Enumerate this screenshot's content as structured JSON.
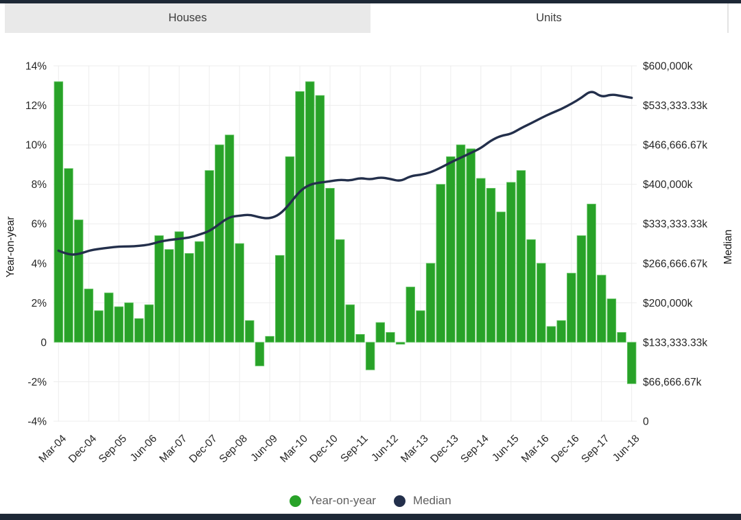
{
  "tabs": {
    "houses": "Houses",
    "units": "Units",
    "active": "Units"
  },
  "colors": {
    "accent_dark": "#1d2836",
    "bar_green": "#28a228",
    "bar_green_border": "#6cc96c",
    "line_navy": "#232f4b",
    "tab_inactive_bg": "#e9e9e9",
    "grid": "#ededed",
    "tick_text": "#262626",
    "legend_text": "#5f5f5f"
  },
  "chart_data": {
    "type": "bar",
    "title": "",
    "categories": [
      "Mar-04",
      "Jun-04",
      "Sep-04",
      "Dec-04",
      "Mar-05",
      "Jun-05",
      "Sep-05",
      "Dec-05",
      "Mar-06",
      "Jun-06",
      "Sep-06",
      "Dec-06",
      "Mar-07",
      "Jun-07",
      "Sep-07",
      "Dec-07",
      "Mar-08",
      "Jun-08",
      "Sep-08",
      "Dec-08",
      "Mar-09",
      "Jun-09",
      "Sep-09",
      "Dec-09",
      "Mar-10",
      "Jun-10",
      "Sep-10",
      "Dec-10",
      "Mar-11",
      "Jun-11",
      "Sep-11",
      "Dec-11",
      "Mar-12",
      "Jun-12",
      "Sep-12",
      "Dec-12",
      "Mar-13",
      "Jun-13",
      "Sep-13",
      "Dec-13",
      "Mar-14",
      "Jun-14",
      "Sep-14",
      "Dec-14",
      "Mar-15",
      "Jun-15",
      "Sep-15",
      "Dec-15",
      "Mar-16",
      "Jun-16",
      "Sep-16",
      "Dec-16",
      "Mar-17",
      "Jun-17",
      "Sep-17",
      "Dec-17",
      "Mar-18",
      "Jun-18"
    ],
    "label_every": 3,
    "x_tick_labels": [
      "Mar-04",
      "Dec-04",
      "Sep-05",
      "Jun-06",
      "Mar-07",
      "Dec-07",
      "Sep-08",
      "Jun-09",
      "Mar-10",
      "Dec-10",
      "Sep-11",
      "Jun-12",
      "Mar-13",
      "Dec-13",
      "Sep-14",
      "Jun-15",
      "Mar-16",
      "Dec-16",
      "Sep-17",
      "Jun-18"
    ],
    "series": [
      {
        "name": "Year-on-year",
        "type": "bar",
        "axis": "left",
        "unit": "%",
        "color": "#28a228",
        "values": [
          13.2,
          8.8,
          6.2,
          2.7,
          1.6,
          2.5,
          1.8,
          2.0,
          1.2,
          1.9,
          5.4,
          4.7,
          5.6,
          4.5,
          5.1,
          8.7,
          10.0,
          10.5,
          5.0,
          1.1,
          -1.2,
          0.3,
          4.4,
          9.4,
          12.7,
          13.2,
          12.5,
          7.8,
          5.2,
          1.9,
          0.4,
          -1.4,
          1.0,
          0.5,
          -0.1,
          2.8,
          1.6,
          4.0,
          8.0,
          9.4,
          10.0,
          9.8,
          8.3,
          7.8,
          6.6,
          8.1,
          8.7,
          5.2,
          4.0,
          0.8,
          1.1,
          3.5,
          5.4,
          7.0,
          3.4,
          2.2,
          0.5,
          -2.1
        ]
      },
      {
        "name": "Median",
        "type": "line",
        "axis": "right",
        "unit": "$k",
        "color": "#232f4b",
        "values": [
          288000,
          281000,
          282000,
          288000,
          291000,
          293000,
          295000,
          295000,
          296000,
          298000,
          303000,
          306000,
          308000,
          310000,
          315000,
          321000,
          333000,
          345000,
          347000,
          349000,
          344000,
          342000,
          349000,
          367000,
          389000,
          400000,
          403000,
          405000,
          408000,
          406000,
          411000,
          408000,
          412000,
          409000,
          405000,
          414000,
          416000,
          420000,
          428000,
          437000,
          445000,
          453000,
          461000,
          474000,
          482000,
          485000,
          495000,
          503000,
          512000,
          520000,
          527000,
          536000,
          546000,
          559000,
          547000,
          552000,
          549000,
          546000
        ]
      }
    ],
    "left_axis": {
      "title": "Year-on-year",
      "min": -4,
      "max": 14,
      "ticks": [
        "14%",
        "12%",
        "10%",
        "8%",
        "6%",
        "4%",
        "2%",
        "0",
        "-2%",
        "-4%"
      ]
    },
    "right_axis": {
      "title": "Median",
      "min": 0,
      "max": 600000,
      "ticks": [
        "$600,000k",
        "$533,333.33k",
        "$466,666.67k",
        "$400,000k",
        "$333,333.33k",
        "$266,666.67k",
        "$200,000k",
        "$133,333.33k",
        "$66,666.67k",
        "0"
      ]
    },
    "legend": [
      {
        "label": "Year-on-year",
        "color": "#28a228"
      },
      {
        "label": "Median",
        "color": "#232f4b"
      }
    ],
    "grid": "on",
    "legend_position": "bottom"
  }
}
